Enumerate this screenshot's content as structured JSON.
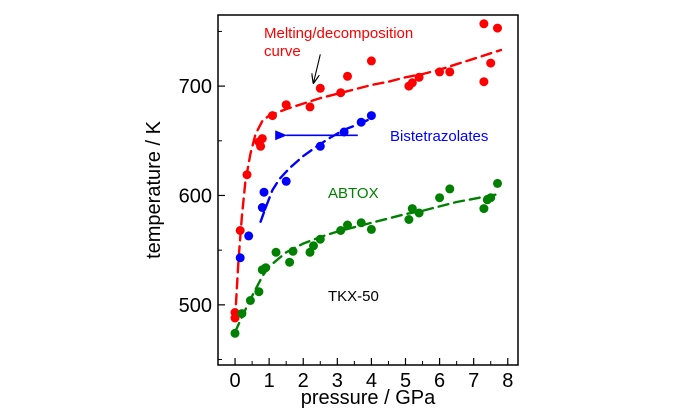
{
  "chart_data": {
    "type": "scatter",
    "title": "",
    "xlabel": "pressure / GPa",
    "ylabel": "temperature / K",
    "xlim": [
      -0.5,
      8.3
    ],
    "ylim": [
      445,
      765
    ],
    "xticks": [
      "0",
      "1",
      "2",
      "3",
      "4",
      "5",
      "6",
      "7",
      "8"
    ],
    "yticks": [
      "500",
      "600",
      "700"
    ],
    "grid": false,
    "annotations": {
      "melting_curve": [
        "Melting/decomposition",
        "curve"
      ],
      "bistetrazolates": "Bistetrazolates",
      "abtox": "ABTOX",
      "tkx50": "TKX-50"
    },
    "series": [
      {
        "key": "melting",
        "color": "#ff0000",
        "points": [
          [
            0.0,
            488
          ],
          [
            0.0,
            493
          ],
          [
            0.15,
            568
          ],
          [
            0.35,
            619
          ],
          [
            0.7,
            649
          ],
          [
            0.75,
            645
          ],
          [
            0.8,
            652
          ],
          [
            1.1,
            673
          ],
          [
            1.5,
            683
          ],
          [
            2.2,
            681
          ],
          [
            2.5,
            698
          ],
          [
            3.1,
            694
          ],
          [
            3.3,
            709
          ],
          [
            4.0,
            723
          ],
          [
            5.1,
            700
          ],
          [
            5.2,
            703
          ],
          [
            5.4,
            708
          ],
          [
            6.0,
            713
          ],
          [
            6.3,
            713
          ],
          [
            7.3,
            757
          ],
          [
            7.3,
            704
          ],
          [
            7.5,
            721
          ],
          [
            7.7,
            753
          ]
        ],
        "fit": [
          [
            0.0,
            486
          ],
          [
            0.1,
            541
          ],
          [
            0.2,
            581
          ],
          [
            0.3,
            612
          ],
          [
            0.45,
            638
          ],
          [
            0.6,
            656
          ],
          [
            0.8,
            668
          ],
          [
            1.0,
            673
          ],
          [
            1.5,
            679
          ],
          [
            2.0,
            684
          ],
          [
            2.5,
            689
          ],
          [
            3.0,
            693
          ],
          [
            3.5,
            697
          ],
          [
            4.0,
            701
          ],
          [
            4.5,
            704
          ],
          [
            5.0,
            708
          ],
          [
            5.5,
            711
          ],
          [
            6.0,
            715
          ],
          [
            6.5,
            720
          ],
          [
            7.0,
            725
          ],
          [
            7.5,
            730
          ],
          [
            7.8,
            733
          ]
        ]
      },
      {
        "key": "bistetrazolates",
        "color": "#0000ff",
        "points": [
          [
            0.15,
            543
          ],
          [
            0.4,
            563
          ],
          [
            0.8,
            589
          ],
          [
            0.85,
            603
          ],
          [
            1.5,
            613
          ],
          [
            2.5,
            645
          ],
          [
            3.2,
            658
          ],
          [
            3.7,
            667
          ],
          [
            4.0,
            673
          ]
        ],
        "fit": [
          [
            0.75,
            576
          ],
          [
            0.9,
            589
          ],
          [
            1.1,
            605
          ],
          [
            1.3,
            615
          ],
          [
            1.6,
            625
          ],
          [
            2.0,
            636
          ],
          [
            2.4,
            645
          ],
          [
            2.8,
            653
          ],
          [
            3.2,
            660
          ],
          [
            3.6,
            665
          ],
          [
            3.9,
            669
          ]
        ]
      },
      {
        "key": "abtox_tkx50",
        "color": "#008000",
        "points": [
          [
            0.0,
            474
          ],
          [
            0.2,
            492
          ],
          [
            0.45,
            504
          ],
          [
            0.7,
            512
          ],
          [
            0.8,
            532
          ],
          [
            0.9,
            534
          ],
          [
            1.2,
            548
          ],
          [
            1.6,
            539
          ],
          [
            1.7,
            549
          ],
          [
            2.2,
            548
          ],
          [
            2.3,
            554
          ],
          [
            2.5,
            560
          ],
          [
            3.1,
            568
          ],
          [
            3.3,
            573
          ],
          [
            3.7,
            575
          ],
          [
            4.0,
            569
          ],
          [
            5.1,
            578
          ],
          [
            5.2,
            588
          ],
          [
            5.4,
            584
          ],
          [
            6.0,
            598
          ],
          [
            6.3,
            606
          ],
          [
            7.3,
            588
          ],
          [
            7.4,
            596
          ],
          [
            7.5,
            598
          ],
          [
            7.7,
            611
          ]
        ],
        "fit": [
          [
            0.0,
            475
          ],
          [
            0.2,
            489
          ],
          [
            0.4,
            502
          ],
          [
            0.6,
            514
          ],
          [
            0.8,
            526
          ],
          [
            1.0,
            535
          ],
          [
            1.5,
            548
          ],
          [
            2.0,
            556
          ],
          [
            2.5,
            562
          ],
          [
            3.0,
            567
          ],
          [
            3.5,
            571
          ],
          [
            4.0,
            575
          ],
          [
            5.0,
            583
          ],
          [
            5.5,
            586
          ],
          [
            6.0,
            590
          ],
          [
            6.5,
            594
          ],
          [
            7.0,
            597
          ],
          [
            7.5,
            600
          ],
          [
            7.7,
            601
          ]
        ]
      }
    ],
    "arrows": [
      {
        "key": "melting-annotation-arrow",
        "color": "#000000",
        "from": [
          2.5,
          729
        ],
        "to": [
          2.3,
          703
        ]
      },
      {
        "key": "bistetrazolates-arrow",
        "color": "#0000ff",
        "from": [
          3.6,
          655
        ],
        "to": [
          1.5,
          655
        ]
      }
    ]
  }
}
